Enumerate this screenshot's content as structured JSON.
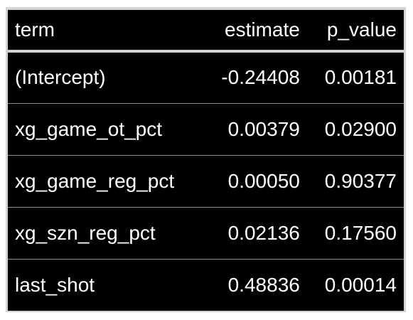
{
  "table": {
    "headers": [
      "term",
      "estimate",
      "p_value"
    ],
    "rows": [
      [
        "(Intercept)",
        "-0.24408",
        "0.00181"
      ],
      [
        "xg_game_ot_pct",
        "0.00379",
        "0.02900"
      ],
      [
        "xg_game_reg_pct",
        "0.00050",
        "0.90377"
      ],
      [
        "xg_szn_reg_pct",
        "0.02136",
        "0.17560"
      ],
      [
        "last_shot",
        "0.48836",
        "0.00014"
      ]
    ]
  },
  "colors": {
    "background": "#000000",
    "text": "#ffffff",
    "border": "#d3d3d3",
    "row_divider": "#8a8a8a"
  }
}
